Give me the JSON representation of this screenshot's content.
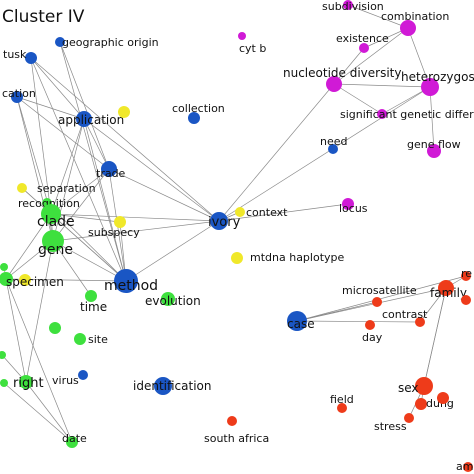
{
  "title": "Cluster IV",
  "colors": {
    "blue": "#1a56c4",
    "magenta": "#d01ad6",
    "yellow": "#f0e82a",
    "green": "#3ee03e",
    "red": "#ee3b1a",
    "edge": "#8a8a8a"
  },
  "nodes": [
    {
      "id": "tusk",
      "label": "tusk",
      "color": "blue"
    },
    {
      "id": "geographic_origin",
      "label": "geographic origin",
      "color": "blue"
    },
    {
      "id": "cation",
      "label": "cation",
      "color": "blue"
    },
    {
      "id": "application",
      "label": "application",
      "color": "blue"
    },
    {
      "id": "collection",
      "label": "collection",
      "color": "blue"
    },
    {
      "id": "trade",
      "label": "trade",
      "color": "blue"
    },
    {
      "id": "ivory",
      "label": "ivory",
      "color": "blue"
    },
    {
      "id": "method",
      "label": "method",
      "color": "blue"
    },
    {
      "id": "identification",
      "label": "identification",
      "color": "blue"
    },
    {
      "id": "virus",
      "label": "virus",
      "color": "blue"
    },
    {
      "id": "need",
      "label": "need",
      "color": "blue"
    },
    {
      "id": "case",
      "label": "case",
      "color": "blue"
    },
    {
      "id": "cyt_b",
      "label": "cyt b",
      "color": "magenta"
    },
    {
      "id": "subdivision",
      "label": "subdivision",
      "color": "magenta"
    },
    {
      "id": "combination",
      "label": "combination",
      "color": "magenta"
    },
    {
      "id": "existence",
      "label": "existence",
      "color": "magenta"
    },
    {
      "id": "nucleotide_diversity",
      "label": "nucleotide diversity",
      "color": "magenta"
    },
    {
      "id": "heterozygosity",
      "label": "heterozygosity",
      "color": "magenta"
    },
    {
      "id": "significant_genetic",
      "label": "significant genetic differenti",
      "color": "magenta"
    },
    {
      "id": "gene_flow",
      "label": "gene flow",
      "color": "magenta"
    },
    {
      "id": "locus",
      "label": "locus",
      "color": "magenta"
    },
    {
      "id": "separation",
      "label": "separation",
      "color": "yellow"
    },
    {
      "id": "subspecy",
      "label": "subspecy",
      "color": "yellow"
    },
    {
      "id": "context",
      "label": "context",
      "color": "yellow"
    },
    {
      "id": "mtdna_haplotype",
      "label": "mtdna haplotype",
      "color": "yellow"
    },
    {
      "id": "yellow_app",
      "label": "",
      "color": "yellow"
    },
    {
      "id": "yellow_specimen",
      "label": "",
      "color": "yellow"
    },
    {
      "id": "recognition",
      "label": "recognition",
      "color": "green"
    },
    {
      "id": "clade",
      "label": "clade",
      "color": "green"
    },
    {
      "id": "gene",
      "label": "gene",
      "color": "green"
    },
    {
      "id": "specimen",
      "label": "specimen",
      "color": "green"
    },
    {
      "id": "time",
      "label": "time",
      "color": "green"
    },
    {
      "id": "evolution",
      "label": "evolution",
      "color": "green"
    },
    {
      "id": "site",
      "label": "site",
      "color": "green"
    },
    {
      "id": "right",
      "label": "right",
      "color": "green"
    },
    {
      "id": "date",
      "label": "date",
      "color": "green"
    },
    {
      "id": "green_left1",
      "label": "",
      "color": "green"
    },
    {
      "id": "green_left2",
      "label": "",
      "color": "green"
    },
    {
      "id": "green_left3",
      "label": "",
      "color": "green"
    },
    {
      "id": "green_site2",
      "label": "",
      "color": "green"
    },
    {
      "id": "microsatellite",
      "label": "microsatellite",
      "color": "red"
    },
    {
      "id": "family",
      "label": "family",
      "color": "red"
    },
    {
      "id": "contrast",
      "label": "contrast",
      "color": "red"
    },
    {
      "id": "day",
      "label": "day",
      "color": "red"
    },
    {
      "id": "sex",
      "label": "sex",
      "color": "red"
    },
    {
      "id": "dung",
      "label": "dung",
      "color": "red"
    },
    {
      "id": "field",
      "label": "field",
      "color": "red"
    },
    {
      "id": "stress",
      "label": "stress",
      "color": "red"
    },
    {
      "id": "south_africa",
      "label": "south africa",
      "color": "red"
    },
    {
      "id": "re",
      "label": "re",
      "color": "red"
    },
    {
      "id": "amb",
      "label": "amb",
      "color": "red"
    },
    {
      "id": "red_extra",
      "label": "",
      "color": "red"
    },
    {
      "id": "red_extra2",
      "label": "",
      "color": "red"
    }
  ],
  "edges": [
    [
      "tusk",
      "method"
    ],
    [
      "tusk",
      "application"
    ],
    [
      "tusk",
      "ivory"
    ],
    [
      "tusk",
      "clade"
    ],
    [
      "geographic_origin",
      "trade"
    ],
    [
      "geographic_origin",
      "method"
    ],
    [
      "cation",
      "application"
    ],
    [
      "cation",
      "trade"
    ],
    [
      "cation",
      "clade"
    ],
    [
      "cation",
      "gene"
    ],
    [
      "application",
      "trade"
    ],
    [
      "application",
      "method"
    ],
    [
      "application",
      "gene"
    ],
    [
      "application",
      "clade"
    ],
    [
      "application",
      "ivory"
    ],
    [
      "trade",
      "method"
    ],
    [
      "trade",
      "clade"
    ],
    [
      "trade",
      "gene"
    ],
    [
      "trade",
      "ivory"
    ],
    [
      "method",
      "gene"
    ],
    [
      "method",
      "clade"
    ],
    [
      "method",
      "specimen"
    ],
    [
      "method",
      "ivory"
    ],
    [
      "method",
      "subspecy"
    ],
    [
      "method",
      "recognition"
    ],
    [
      "method",
      "separation"
    ],
    [
      "gene",
      "clade"
    ],
    [
      "gene",
      "specimen"
    ],
    [
      "gene",
      "recognition"
    ],
    [
      "gene",
      "right"
    ],
    [
      "gene",
      "time"
    ],
    [
      "clade",
      "recognition"
    ],
    [
      "clade",
      "separation"
    ],
    [
      "clade",
      "subspecy"
    ],
    [
      "clade",
      "specimen"
    ],
    [
      "ivory",
      "nucleotide_diversity"
    ],
    [
      "ivory",
      "heterozygosity"
    ],
    [
      "ivory",
      "clade"
    ],
    [
      "ivory",
      "gene"
    ],
    [
      "ivory",
      "context"
    ],
    [
      "ivory",
      "locus"
    ],
    [
      "nucleotide_diversity",
      "heterozygosity"
    ],
    [
      "nucleotide_diversity",
      "combination"
    ],
    [
      "nucleotide_diversity",
      "existence"
    ],
    [
      "nucleotide_diversity",
      "significant_genetic"
    ],
    [
      "heterozygosity",
      "combination"
    ],
    [
      "heterozygosity",
      "significant_genetic"
    ],
    [
      "heterozygosity",
      "gene_flow"
    ],
    [
      "combination",
      "existence"
    ],
    [
      "combination",
      "subdivision"
    ],
    [
      "case",
      "family"
    ],
    [
      "case",
      "contrast"
    ],
    [
      "case",
      "re"
    ],
    [
      "case",
      "microsatellite"
    ],
    [
      "family",
      "re"
    ],
    [
      "family",
      "contrast"
    ],
    [
      "family",
      "sex"
    ],
    [
      "sex",
      "dung"
    ],
    [
      "sex",
      "stress"
    ],
    [
      "sex",
      "family"
    ],
    [
      "specimen",
      "right"
    ],
    [
      "specimen",
      "date"
    ],
    [
      "right",
      "date"
    ],
    [
      "right",
      "green_left2"
    ],
    [
      "green_left3",
      "date"
    ],
    [
      "green_left1",
      "specimen"
    ]
  ]
}
